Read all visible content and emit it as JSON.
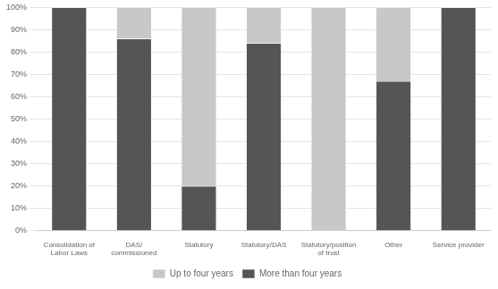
{
  "chart_data": {
    "type": "bar",
    "stacked": true,
    "categories": [
      "Consolidation of\nLabor Laws",
      "DAS/\ncommissioned",
      "Statutory",
      "Statutory/DAS",
      "Statutory/position\nof trust",
      "Other",
      "Service provider"
    ],
    "series": [
      {
        "name": "More than four years",
        "color": "#555555",
        "values": [
          100,
          86,
          20,
          84,
          0,
          67,
          100
        ]
      },
      {
        "name": "Up to four years",
        "color": "#c8c8c8",
        "values": [
          0,
          14,
          80,
          16,
          100,
          33,
          0
        ]
      }
    ],
    "ylim": [
      0,
      100
    ],
    "yticks": [
      {
        "value": 0,
        "label": "0%"
      },
      {
        "value": 10,
        "label": "10%"
      },
      {
        "value": 20,
        "label": "20%"
      },
      {
        "value": 30,
        "label": "30%"
      },
      {
        "value": 40,
        "label": "40%"
      },
      {
        "value": 50,
        "label": "50%"
      },
      {
        "value": 60,
        "label": "60%"
      },
      {
        "value": 70,
        "label": "70%"
      },
      {
        "value": 80,
        "label": "80%"
      },
      {
        "value": 90,
        "label": "90%"
      },
      {
        "value": 100,
        "label": "100%"
      }
    ],
    "grid": true,
    "legend": "bottom"
  }
}
